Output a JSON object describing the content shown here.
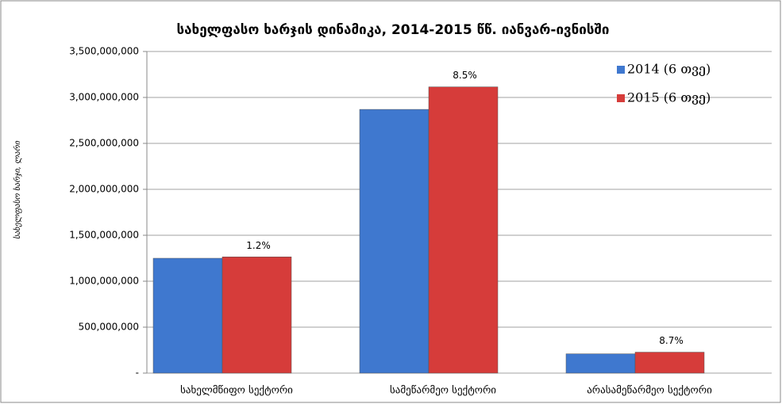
{
  "chart_data": {
    "type": "bar",
    "title": "სახელფასო ხარჯის დინამიკა, 2014-2015 წწ. იანვარ-ივნისში",
    "y_label": "სახელფასო ხარჯი, ლარი",
    "categories": [
      "სახელმწიფო სექტორი",
      "სამეწარმეო სექტორი",
      "არასამეწარმეო სექტორი"
    ],
    "series": [
      {
        "name": "2014 (6 თვე)",
        "color": "#3f78cf",
        "values": [
          1250000000,
          2870000000,
          210000000
        ]
      },
      {
        "name": "2015 (6 თვე)",
        "color": "#d63c3a",
        "values": [
          1265000000,
          3115000000,
          228000000
        ]
      }
    ],
    "annotations": [
      "1.2%",
      "8.5%",
      "8.7%"
    ],
    "ylim": [
      0,
      3500000000
    ],
    "yticks": [
      {
        "value": 0,
        "label": "-"
      },
      {
        "value": 500000000,
        "label": "500,000,000"
      },
      {
        "value": 1000000000,
        "label": "1,000,000,000"
      },
      {
        "value": 1500000000,
        "label": "1,500,000,000"
      },
      {
        "value": 2000000000,
        "label": "2,000,000,000"
      },
      {
        "value": 2500000000,
        "label": "2,500,000,000"
      },
      {
        "value": 3000000000,
        "label": "3,000,000,000"
      },
      {
        "value": 3500000000,
        "label": "3,500,000,000"
      }
    ],
    "grid": true,
    "legend": "top-right"
  }
}
